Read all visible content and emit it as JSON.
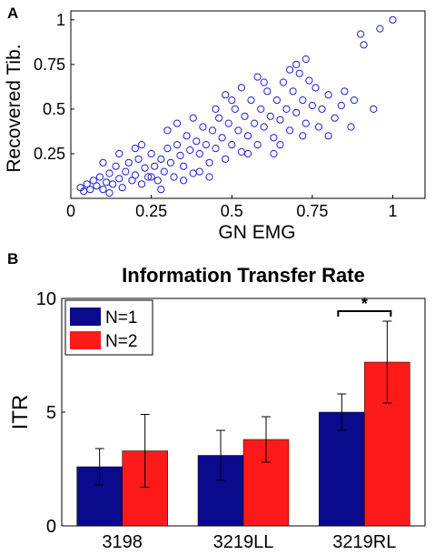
{
  "panel_a_label": "A",
  "panel_b_label": "B",
  "chart_data": [
    {
      "type": "scatter",
      "title": "",
      "xlabel": "GN EMG",
      "ylabel": "Recovered Tib.",
      "xlim": [
        0,
        1.1
      ],
      "ylim": [
        0,
        1.05
      ],
      "xticks": [
        "0",
        "0.25",
        "0.5",
        "0.75",
        "1"
      ],
      "yticks": [
        "0.25",
        "0.5",
        "0.75",
        "1"
      ],
      "xtick_values": [
        0,
        0.25,
        0.5,
        0.75,
        1
      ],
      "ytick_values": [
        0.25,
        0.5,
        0.75,
        1
      ],
      "marker": "open-circle",
      "color": "#1f1fd0",
      "grid": false,
      "points": [
        [
          0.03,
          0.06
        ],
        [
          0.04,
          0.04
        ],
        [
          0.05,
          0.08
        ],
        [
          0.06,
          0.05
        ],
        [
          0.07,
          0.1
        ],
        [
          0.08,
          0.07
        ],
        [
          0.09,
          0.12
        ],
        [
          0.1,
          0.05
        ],
        [
          0.11,
          0.09
        ],
        [
          0.12,
          0.14
        ],
        [
          0.13,
          0.08
        ],
        [
          0.14,
          0.18
        ],
        [
          0.15,
          0.11
        ],
        [
          0.16,
          0.06
        ],
        [
          0.17,
          0.15
        ],
        [
          0.18,
          0.2
        ],
        [
          0.19,
          0.1
        ],
        [
          0.2,
          0.13
        ],
        [
          0.21,
          0.22
        ],
        [
          0.22,
          0.08
        ],
        [
          0.23,
          0.17
        ],
        [
          0.24,
          0.12
        ],
        [
          0.25,
          0.25
        ],
        [
          0.26,
          0.18
        ],
        [
          0.27,
          0.1
        ],
        [
          0.28,
          0.22
        ],
        [
          0.29,
          0.15
        ],
        [
          0.3,
          0.28
        ],
        [
          0.31,
          0.2
        ],
        [
          0.32,
          0.12
        ],
        [
          0.33,
          0.3
        ],
        [
          0.34,
          0.24
        ],
        [
          0.35,
          0.18
        ],
        [
          0.36,
          0.35
        ],
        [
          0.37,
          0.27
        ],
        [
          0.38,
          0.14
        ],
        [
          0.39,
          0.32
        ],
        [
          0.4,
          0.25
        ],
        [
          0.41,
          0.4
        ],
        [
          0.42,
          0.3
        ],
        [
          0.43,
          0.2
        ],
        [
          0.44,
          0.38
        ],
        [
          0.45,
          0.28
        ],
        [
          0.46,
          0.45
        ],
        [
          0.47,
          0.34
        ],
        [
          0.48,
          0.22
        ],
        [
          0.49,
          0.42
        ],
        [
          0.5,
          0.3
        ],
        [
          0.51,
          0.5
        ],
        [
          0.52,
          0.38
        ],
        [
          0.53,
          0.26
        ],
        [
          0.54,
          0.46
        ],
        [
          0.55,
          0.35
        ],
        [
          0.56,
          0.55
        ],
        [
          0.57,
          0.42
        ],
        [
          0.58,
          0.3
        ],
        [
          0.59,
          0.5
        ],
        [
          0.6,
          0.4
        ],
        [
          0.61,
          0.6
        ],
        [
          0.62,
          0.46
        ],
        [
          0.63,
          0.34
        ],
        [
          0.64,
          0.55
        ],
        [
          0.65,
          0.44
        ],
        [
          0.66,
          0.65
        ],
        [
          0.67,
          0.5
        ],
        [
          0.68,
          0.38
        ],
        [
          0.69,
          0.6
        ],
        [
          0.7,
          0.48
        ],
        [
          0.71,
          0.7
        ],
        [
          0.72,
          0.55
        ],
        [
          0.73,
          0.42
        ],
        [
          0.74,
          0.66
        ],
        [
          0.75,
          0.52
        ],
        [
          0.76,
          0.62
        ],
        [
          0.78,
          0.5
        ],
        [
          0.8,
          0.58
        ],
        [
          0.82,
          0.45
        ],
        [
          0.85,
          0.6
        ],
        [
          0.88,
          0.55
        ],
        [
          0.9,
          0.92
        ],
        [
          0.91,
          0.86
        ],
        [
          0.94,
          0.5
        ],
        [
          0.96,
          0.95
        ],
        [
          1.0,
          1.0
        ],
        [
          0.2,
          0.28
        ],
        [
          0.25,
          0.12
        ],
        [
          0.3,
          0.38
        ],
        [
          0.35,
          0.1
        ],
        [
          0.4,
          0.15
        ],
        [
          0.45,
          0.5
        ],
        [
          0.5,
          0.55
        ],
        [
          0.55,
          0.25
        ],
        [
          0.6,
          0.65
        ],
        [
          0.65,
          0.3
        ],
        [
          0.7,
          0.75
        ],
        [
          0.72,
          0.35
        ],
        [
          0.15,
          0.25
        ],
        [
          0.1,
          0.2
        ],
        [
          0.12,
          0.03
        ],
        [
          0.22,
          0.3
        ],
        [
          0.28,
          0.05
        ],
        [
          0.33,
          0.42
        ],
        [
          0.38,
          0.45
        ],
        [
          0.43,
          0.12
        ],
        [
          0.48,
          0.58
        ],
        [
          0.53,
          0.62
        ],
        [
          0.58,
          0.68
        ],
        [
          0.63,
          0.25
        ],
        [
          0.68,
          0.72
        ],
        [
          0.73,
          0.78
        ],
        [
          0.77,
          0.4
        ],
        [
          0.8,
          0.35
        ],
        [
          0.84,
          0.52
        ],
        [
          0.87,
          0.4
        ]
      ]
    },
    {
      "type": "bar",
      "title": "Information Transfer Rate",
      "xlabel": "",
      "ylabel": "ITR",
      "categories": [
        "3198",
        "3219LL",
        "3219RL"
      ],
      "ylim": [
        0,
        10
      ],
      "yticks": [
        "0",
        "5",
        "10"
      ],
      "ytick_values": [
        0,
        5,
        10
      ],
      "legend_position": "top-left",
      "series": [
        {
          "name": "N=1",
          "color": "#0a0a8c",
          "values": [
            2.6,
            3.1,
            5.0
          ],
          "err": [
            0.8,
            1.1,
            0.8
          ]
        },
        {
          "name": "N=2",
          "color": "#ff1a1a",
          "values": [
            3.3,
            3.8,
            7.2
          ],
          "err": [
            1.6,
            1.0,
            1.8
          ]
        }
      ],
      "annotation": "*"
    }
  ]
}
